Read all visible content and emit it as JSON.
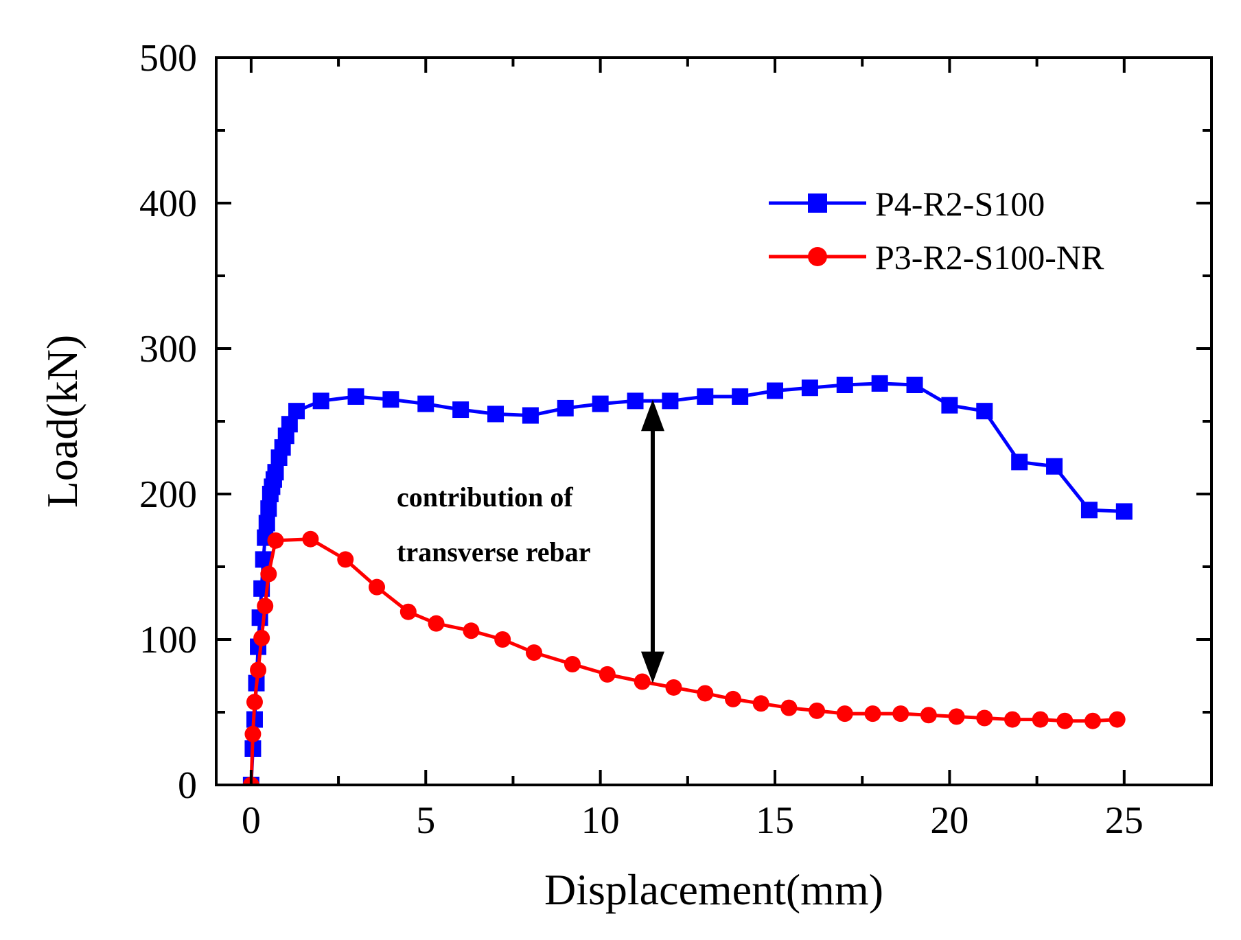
{
  "chart_data": {
    "type": "line",
    "title": "",
    "xlabel": "Displacement(mm)",
    "ylabel": "Load(kN)",
    "xlim": [
      -1,
      27.5
    ],
    "ylim": [
      0,
      500
    ],
    "xticks": [
      0,
      5,
      10,
      15,
      20,
      25
    ],
    "xtick_labels": [
      "0",
      "5",
      "10",
      "15",
      "20",
      "25"
    ],
    "yticks": [
      0,
      100,
      200,
      300,
      400,
      500
    ],
    "ytick_labels": [
      "0",
      "100",
      "200",
      "300",
      "400",
      "500"
    ],
    "legend_position": "top-right",
    "series": [
      {
        "name": "P4-R2-S100",
        "color": "#0000ff",
        "marker": "square",
        "x": [
          0,
          0.05,
          0.1,
          0.15,
          0.2,
          0.25,
          0.3,
          0.35,
          0.4,
          0.45,
          0.5,
          0.55,
          0.6,
          0.65,
          0.7,
          0.8,
          0.9,
          1.0,
          1.1,
          1.3,
          2.0,
          3.0,
          4.0,
          5.0,
          6.0,
          7.0,
          8.0,
          9.0,
          10.0,
          11.0,
          12.0,
          13.0,
          14.0,
          15.0,
          16.0,
          17.0,
          18.0,
          19.0,
          20.0,
          21.0,
          22.0,
          23.0,
          24.0,
          25.0
        ],
        "y": [
          0,
          25,
          45,
          70,
          95,
          115,
          135,
          155,
          170,
          180,
          190,
          200,
          205,
          210,
          215,
          225,
          232,
          240,
          248,
          257,
          264,
          267,
          265,
          262,
          258,
          255,
          254,
          259,
          262,
          264,
          264,
          267,
          267,
          271,
          273,
          275,
          276,
          275,
          261,
          257,
          222,
          219,
          189,
          188
        ]
      },
      {
        "name": "P3-R2-S100-NR",
        "color": "#ff0000",
        "marker": "circle",
        "x": [
          0,
          0.05,
          0.1,
          0.2,
          0.3,
          0.4,
          0.5,
          0.7,
          1.7,
          2.7,
          3.6,
          4.5,
          5.3,
          6.3,
          7.2,
          8.1,
          9.2,
          10.2,
          11.2,
          12.1,
          13.0,
          13.8,
          14.6,
          15.4,
          16.2,
          17.0,
          17.8,
          18.6,
          19.4,
          20.2,
          21.0,
          21.8,
          22.6,
          23.3,
          24.1,
          24.8
        ],
        "y": [
          0,
          35,
          57,
          79,
          101,
          123,
          145,
          168,
          169,
          155,
          136,
          119,
          111,
          106,
          100,
          91,
          83,
          76,
          71,
          67,
          63,
          59,
          56,
          53,
          51,
          49,
          49,
          49,
          48,
          47,
          46,
          45,
          45,
          44,
          44,
          45
        ]
      }
    ],
    "annotation": {
      "lines": [
        "contribution of",
        "transverse rebar"
      ],
      "arrow_x": 11.5,
      "arrow_y_top": 265,
      "arrow_y_bottom": 70
    }
  }
}
